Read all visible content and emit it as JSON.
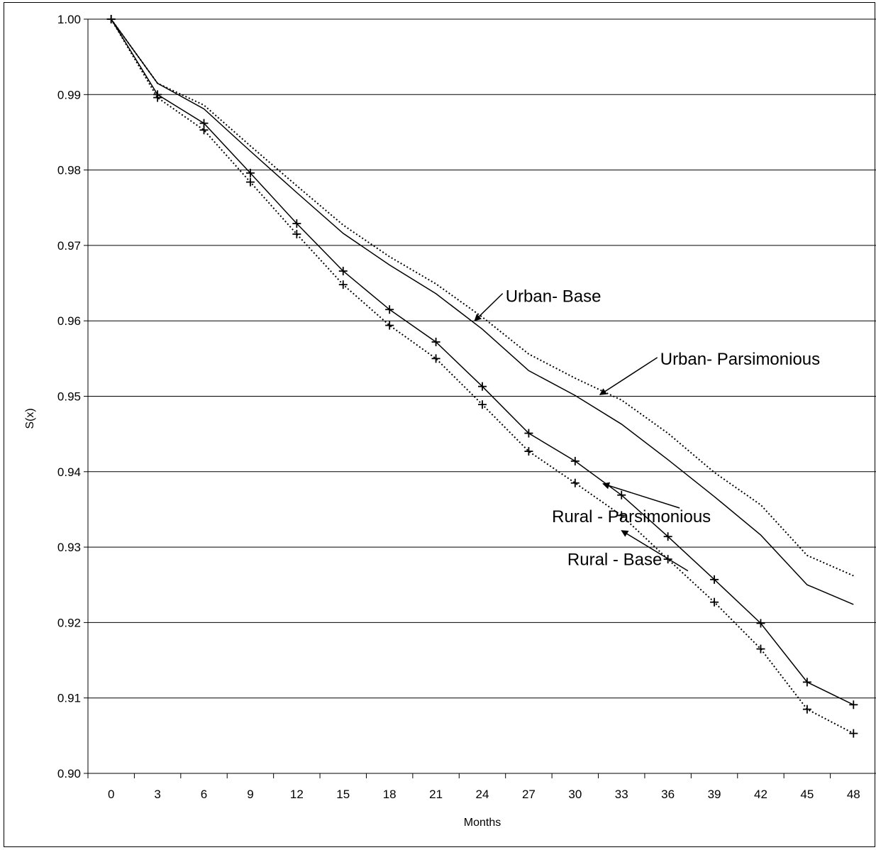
{
  "chart_data": {
    "type": "line",
    "xlabel": "Months",
    "ylabel": "S(x)",
    "x": [
      0,
      3,
      6,
      9,
      12,
      15,
      18,
      21,
      24,
      27,
      30,
      33,
      36,
      39,
      42,
      45,
      48
    ],
    "x_ticks": [
      "0",
      "3",
      "6",
      "9",
      "12",
      "15",
      "18",
      "21",
      "24",
      "27",
      "30",
      "33",
      "36",
      "39",
      "42",
      "45",
      "48"
    ],
    "ylim": [
      0.9,
      1.0
    ],
    "y_ticks": [
      "0.90",
      "0.91",
      "0.92",
      "0.93",
      "0.94",
      "0.95",
      "0.96",
      "0.97",
      "0.98",
      "0.99",
      "1.00"
    ],
    "grid": "horizontal",
    "series": [
      {
        "name": "Urban- Base",
        "style": "dotted",
        "marker": "none",
        "values": [
          1.0,
          0.9915,
          0.9886,
          0.9832,
          0.9779,
          0.9727,
          0.9685,
          0.9649,
          0.9605,
          0.9556,
          0.9524,
          0.9495,
          0.9451,
          0.9399,
          0.9356,
          0.9289,
          0.9262
        ]
      },
      {
        "name": "Urban- Parsimonious",
        "style": "solid",
        "marker": "none",
        "values": [
          1.0,
          0.9915,
          0.9881,
          0.9825,
          0.977,
          0.9716,
          0.9674,
          0.9636,
          0.9589,
          0.9534,
          0.9501,
          0.9463,
          0.9416,
          0.9367,
          0.9316,
          0.925,
          0.9224
        ]
      },
      {
        "name": "Rural - Parsimonious",
        "style": "solid",
        "marker": "plus",
        "values": [
          1.0,
          0.99,
          0.9862,
          0.9796,
          0.9729,
          0.9666,
          0.9615,
          0.9572,
          0.9513,
          0.9451,
          0.9414,
          0.9369,
          0.9314,
          0.9257,
          0.9199,
          0.9121,
          0.9091
        ]
      },
      {
        "name": "Rural - Base",
        "style": "dotted",
        "marker": "plus",
        "values": [
          1.0,
          0.9896,
          0.9853,
          0.9784,
          0.9715,
          0.9648,
          0.9594,
          0.955,
          0.9489,
          0.9427,
          0.9385,
          0.9342,
          0.9284,
          0.9227,
          0.9165,
          0.9085,
          0.9053
        ]
      }
    ],
    "annotations": [
      {
        "text": "Urban- Base",
        "x": 25.5,
        "y": 0.9625,
        "arrow_x": 23.5,
        "arrow_y": 0.96
      },
      {
        "text": "Urban- Parsimonious",
        "x": 35.5,
        "y": 0.9542,
        "arrow_x": 31.6,
        "arrow_y": 0.9502
      },
      {
        "text": "Rural - Parsimonious",
        "x": 28.5,
        "y": 0.9333,
        "arrow_x": 31.8,
        "arrow_y": 0.9384
      },
      {
        "text": "Rural - Base",
        "x": 29.5,
        "y": 0.9276,
        "arrow_x": 33.0,
        "arrow_y": 0.9322
      }
    ]
  }
}
